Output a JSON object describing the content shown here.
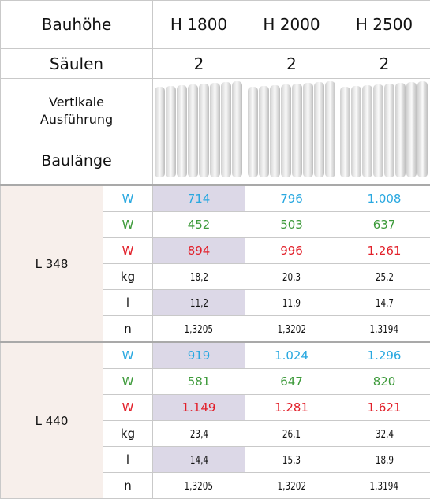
{
  "header": {
    "label": "Bauhöhe",
    "columns": [
      "H 1800",
      "H 2000",
      "H 2500"
    ]
  },
  "columns_row": {
    "label": "Säulen",
    "values": [
      "2",
      "2",
      "2"
    ]
  },
  "image_row": {
    "label": "Vertikale Ausführung",
    "sublabel": "Baulänge"
  },
  "groups": [
    {
      "label": "L 348",
      "rows": [
        {
          "unit": "W",
          "values": [
            "714",
            "796",
            "1.008"
          ]
        },
        {
          "unit": "W",
          "values": [
            "452",
            "503",
            "637"
          ]
        },
        {
          "unit": "W",
          "values": [
            "894",
            "996",
            "1.261"
          ]
        },
        {
          "unit": "kg",
          "values": [
            "18,2",
            "20,3",
            "25,2"
          ]
        },
        {
          "unit": "l",
          "values": [
            "11,2",
            "11,9",
            "14,7"
          ]
        },
        {
          "unit": "n",
          "values": [
            "1,3205",
            "1,3202",
            "1,3194"
          ]
        }
      ]
    },
    {
      "label": "L 440",
      "rows": [
        {
          "unit": "W",
          "values": [
            "919",
            "1.024",
            "1.296"
          ]
        },
        {
          "unit": "W",
          "values": [
            "581",
            "647",
            "820"
          ]
        },
        {
          "unit": "W",
          "values": [
            "1.149",
            "1.281",
            "1.621"
          ]
        },
        {
          "unit": "kg",
          "values": [
            "23,4",
            "26,1",
            "32,4"
          ]
        },
        {
          "unit": "l",
          "values": [
            "14,4",
            "15,3",
            "18,9"
          ]
        },
        {
          "unit": "n",
          "values": [
            "1,3205",
            "1,3202",
            "1,3194"
          ]
        }
      ]
    }
  ]
}
